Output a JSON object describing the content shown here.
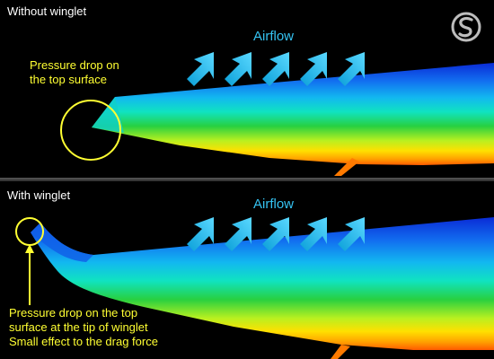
{
  "panels": {
    "without": {
      "title": "Without winglet",
      "airflow_label": "Airflow",
      "note_lines": [
        "Pressure drop on",
        "the top surface"
      ]
    },
    "with": {
      "title": "With winglet",
      "airflow_label": "Airflow",
      "note_lines": [
        "Pressure drop on the top",
        "surface at the tip of winglet",
        "Small effect to the drag force"
      ]
    }
  },
  "colors": {
    "background": "#000000",
    "text": "#ffffff",
    "airflow": "#35c3f2",
    "annotation": "#ffff32",
    "pressure_low": "#0a2bd6",
    "pressure_high": "#ff5a00"
  },
  "icons": {
    "logo": "swirl-s-logo-icon",
    "arrow": "airflow-arrow-icon"
  }
}
